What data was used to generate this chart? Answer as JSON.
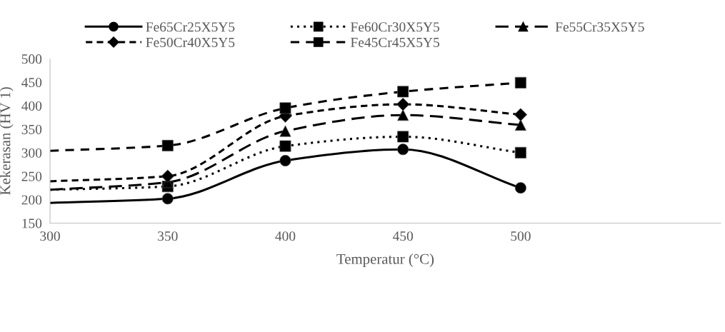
{
  "chart_data": {
    "type": "line",
    "xlabel": "Temperatur (°C)",
    "ylabel": "Kekerasan (HV 1)",
    "x": [
      300,
      350,
      400,
      450,
      500
    ],
    "series": [
      {
        "name": "Fe65Cr25X5Y5",
        "color": "#000000",
        "marker": "circle",
        "line_style": "solid",
        "values": [
          193,
          202,
          283,
          307,
          225
        ]
      },
      {
        "name": "Fe60Cr30X5Y5",
        "color": "#000000",
        "marker": "square",
        "line_style": "dotted",
        "values": [
          221,
          228,
          314,
          334,
          300
        ]
      },
      {
        "name": "Fe55Cr35X5Y5",
        "color": "#000000",
        "marker": "triangle",
        "line_style": "dashed",
        "values": [
          221,
          237,
          346,
          380,
          359
        ]
      },
      {
        "name": "Fe50Cr40X5Y5",
        "color": "#000000",
        "marker": "diamond",
        "line_style": "dashed",
        "values": [
          239,
          250,
          378,
          403,
          381
        ]
      },
      {
        "name": "Fe45Cr45X5Y5",
        "color": "#000000",
        "marker": "square",
        "line_style": "dashed",
        "values": [
          304,
          315,
          395,
          430,
          449
        ]
      }
    ],
    "xlim": [
      300,
      585
    ],
    "xticks": [
      300,
      350,
      400,
      450,
      500
    ],
    "ylim": [
      150,
      500
    ],
    "yticks": [
      150,
      200,
      250,
      300,
      350,
      400,
      450,
      500
    ],
    "grid": false,
    "legend": "top"
  }
}
